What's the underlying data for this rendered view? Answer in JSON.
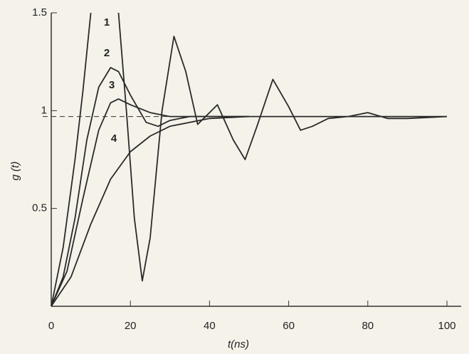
{
  "chart_data": {
    "type": "line",
    "x_label": "t(ns)",
    "y_label": "g (t)",
    "xlim": [
      0,
      100
    ],
    "ylim": [
      0,
      1.5
    ],
    "xticks": [
      0,
      20,
      40,
      60,
      80,
      100
    ],
    "yticks": [
      0.5,
      1,
      1.5
    ],
    "reference_line": 0.97,
    "series": [
      {
        "name": "1",
        "color": "#2a2a2a",
        "x": [
          0,
          3,
          6,
          8,
          10,
          12.5,
          17,
          19,
          21,
          23,
          25,
          28,
          31,
          34,
          37,
          42,
          46,
          49,
          52,
          56,
          60,
          63,
          66,
          70,
          75,
          80,
          85,
          90,
          100
        ],
        "values": [
          0,
          0.3,
          0.75,
          1.1,
          1.5,
          null,
          1.5,
          1.0,
          0.45,
          0.13,
          0.35,
          1.0,
          1.38,
          1.2,
          0.93,
          1.03,
          0.85,
          0.75,
          0.92,
          1.16,
          1.02,
          0.9,
          0.92,
          0.96,
          0.97,
          0.99,
          0.96,
          0.96,
          0.97
        ]
      },
      {
        "name": "2",
        "color": "#2a2a2a",
        "x": [
          0,
          3,
          6,
          9,
          12,
          15,
          17,
          20,
          24,
          27,
          30,
          35,
          40,
          50
        ],
        "values": [
          0,
          0.15,
          0.45,
          0.85,
          1.12,
          1.22,
          1.2,
          1.08,
          0.94,
          0.92,
          0.95,
          0.97,
          0.97,
          0.97
        ]
      },
      {
        "name": "3",
        "color": "#2a2a2a",
        "x": [
          0,
          4,
          8,
          12,
          15,
          17,
          20,
          25,
          30,
          40,
          60,
          100
        ],
        "values": [
          0,
          0.18,
          0.55,
          0.9,
          1.04,
          1.06,
          1.03,
          0.99,
          0.97,
          0.97,
          0.97,
          0.97
        ]
      },
      {
        "name": "4",
        "color": "#2a2a2a",
        "x": [
          0,
          5,
          10,
          15,
          20,
          25,
          30,
          40,
          50
        ],
        "values": [
          0,
          0.15,
          0.42,
          0.65,
          0.79,
          0.87,
          0.92,
          0.96,
          0.97
        ]
      }
    ]
  }
}
